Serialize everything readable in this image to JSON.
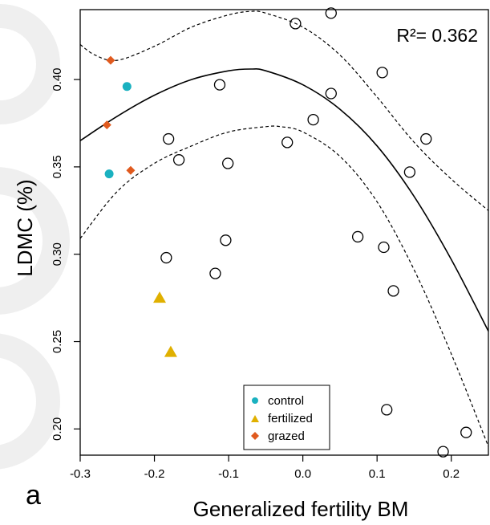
{
  "chart_data": {
    "type": "scatter",
    "title": "",
    "xlabel": "Generalized fertility BM",
    "ylabel": "LDMC (%)",
    "xlim": [
      -0.3,
      0.25
    ],
    "ylim": [
      0.185,
      0.44
    ],
    "xticks": [
      -0.3,
      -0.2,
      -0.1,
      0.0,
      0.1,
      0.2
    ],
    "xtick_labels": [
      "-0.3",
      "-0.2",
      "-0.1",
      "0.0",
      "0.1",
      "0.2"
    ],
    "yticks": [
      0.2,
      0.25,
      0.3,
      0.35,
      0.4
    ],
    "ytick_labels": [
      "0.20",
      "0.25",
      "0.30",
      "0.35",
      "0.40"
    ],
    "annotation": "R²= 0.362",
    "panel_label": "a",
    "grid": false,
    "legend_placement": "bottom-center",
    "series": [
      {
        "name": "",
        "marker": "open-circle",
        "color": "#000000",
        "points": [
          [
            -0.01,
            0.432
          ],
          [
            0.038,
            0.438
          ],
          [
            0.107,
            0.404
          ],
          [
            -0.112,
            0.397
          ],
          [
            0.038,
            0.392
          ],
          [
            0.014,
            0.377
          ],
          [
            -0.181,
            0.366
          ],
          [
            -0.021,
            0.364
          ],
          [
            0.166,
            0.366
          ],
          [
            -0.167,
            0.354
          ],
          [
            -0.101,
            0.352
          ],
          [
            0.144,
            0.347
          ],
          [
            -0.104,
            0.308
          ],
          [
            0.074,
            0.31
          ],
          [
            0.109,
            0.304
          ],
          [
            -0.184,
            0.298
          ],
          [
            -0.118,
            0.289
          ],
          [
            0.122,
            0.279
          ],
          [
            0.113,
            0.211
          ],
          [
            0.22,
            0.198
          ],
          [
            0.189,
            0.187
          ]
        ]
      },
      {
        "name": "control",
        "marker": "filled-circle",
        "color": "#1ab1c0",
        "points": [
          [
            -0.237,
            0.396
          ],
          [
            -0.261,
            0.346
          ]
        ]
      },
      {
        "name": "fertilized",
        "marker": "filled-triangle",
        "color": "#e0b000",
        "points": [
          [
            -0.193,
            0.275
          ],
          [
            -0.178,
            0.244
          ]
        ]
      },
      {
        "name": "grazed",
        "marker": "filled-diamond",
        "color": "#e05a1e",
        "points": [
          [
            -0.259,
            0.411
          ],
          [
            -0.264,
            0.374
          ],
          [
            -0.232,
            0.348
          ]
        ]
      }
    ],
    "fit": {
      "name": "",
      "style": "solid",
      "x": [
        -0.3,
        -0.25,
        -0.2,
        -0.15,
        -0.1,
        -0.07,
        -0.05,
        0.0,
        0.05,
        0.1,
        0.15,
        0.2,
        0.25
      ],
      "y": [
        0.365,
        0.379,
        0.391,
        0.4,
        0.405,
        0.406,
        0.405,
        0.397,
        0.383,
        0.362,
        0.333,
        0.297,
        0.256
      ]
    },
    "ci_upper": {
      "name": "",
      "style": "dashed",
      "x": [
        -0.3,
        -0.28,
        -0.25,
        -0.2,
        -0.15,
        -0.1,
        -0.07,
        -0.05,
        0.0,
        0.05,
        0.1,
        0.15,
        0.2,
        0.25
      ],
      "y": [
        0.42,
        0.414,
        0.411,
        0.419,
        0.43,
        0.437,
        0.439,
        0.438,
        0.43,
        0.414,
        0.39,
        0.364,
        0.343,
        0.325
      ]
    },
    "ci_lower": {
      "name": "",
      "style": "dashed",
      "x": [
        -0.3,
        -0.25,
        -0.2,
        -0.15,
        -0.1,
        -0.05,
        -0.03,
        0.0,
        0.05,
        0.1,
        0.15,
        0.2,
        0.25
      ],
      "y": [
        0.309,
        0.336,
        0.352,
        0.362,
        0.37,
        0.373,
        0.373,
        0.37,
        0.356,
        0.33,
        0.291,
        0.243,
        0.19
      ]
    }
  },
  "legend": {
    "items": [
      {
        "label": "control",
        "marker": "filled-circle",
        "color": "#1ab1c0"
      },
      {
        "label": "fertilized",
        "marker": "filled-triangle",
        "color": "#e0b000"
      },
      {
        "label": "grazed",
        "marker": "filled-diamond",
        "color": "#e05a1e"
      }
    ]
  }
}
